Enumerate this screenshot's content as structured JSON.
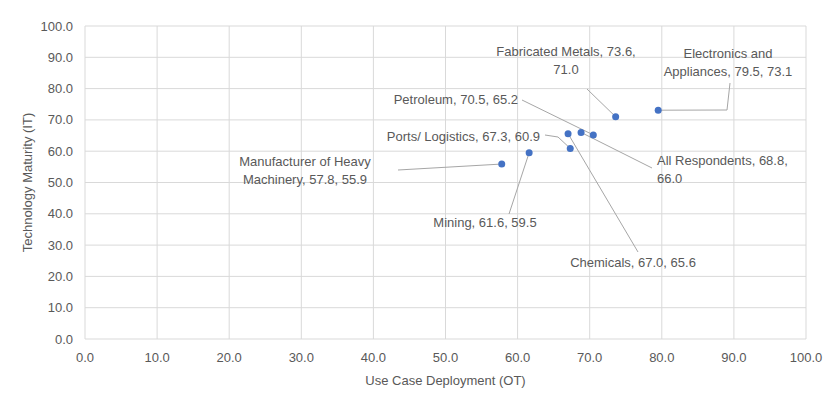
{
  "chart_data": {
    "type": "scatter",
    "x_label": "Use Case Deployment (OT)",
    "y_label": "Technology Maturity (IT)",
    "x": [
      73.6,
      79.5,
      70.5,
      68.8,
      67.3,
      67.0,
      57.8,
      61.6
    ],
    "values": [
      71.0,
      73.1,
      65.2,
      66.0,
      60.9,
      65.6,
      55.9,
      59.5
    ],
    "value_labels": [
      "Fabricated Metals, 73.6, 71.0",
      "Electronics and Appliances, 79.5, 73.1",
      "Petroleum, 70.5, 65.2",
      "All Respondents, 68.8, 66.0",
      "Ports/ Logistics, 67.3, 60.9",
      "Chemicals, 67.0, 65.6",
      "Manufacturer of Heavy Machinery, 57.8, 55.9",
      "Mining, 61.6, 59.5"
    ],
    "data_labels": true,
    "color": "#4472c4",
    "marker": "circle",
    "xlim": [
      0,
      100
    ],
    "ylim": [
      0,
      100
    ],
    "xticks": [
      {
        "value": 0,
        "label": "0.0"
      },
      {
        "value": 10,
        "label": "10.0"
      },
      {
        "value": 20,
        "label": "20.0"
      },
      {
        "value": 30,
        "label": "30.0"
      },
      {
        "value": 40,
        "label": "40.0"
      },
      {
        "value": 50,
        "label": "50.0"
      },
      {
        "value": 60,
        "label": "60.0"
      },
      {
        "value": 70,
        "label": "70.0"
      },
      {
        "value": 80,
        "label": "80.0"
      },
      {
        "value": 90,
        "label": "90.0"
      },
      {
        "value": 100,
        "label": "100.0"
      }
    ],
    "yticks": [
      {
        "value": 0,
        "label": "0.0"
      },
      {
        "value": 10,
        "label": "10.0"
      },
      {
        "value": 20,
        "label": "20.0"
      },
      {
        "value": 30,
        "label": "30.0"
      },
      {
        "value": 40,
        "label": "40.0"
      },
      {
        "value": 50,
        "label": "50.0"
      },
      {
        "value": 60,
        "label": "60.0"
      },
      {
        "value": 70,
        "label": "70.0"
      },
      {
        "value": 80,
        "label": "80.0"
      },
      {
        "value": 90,
        "label": "90.0"
      },
      {
        "value": 100,
        "label": "100.0"
      }
    ],
    "grid": true
  }
}
